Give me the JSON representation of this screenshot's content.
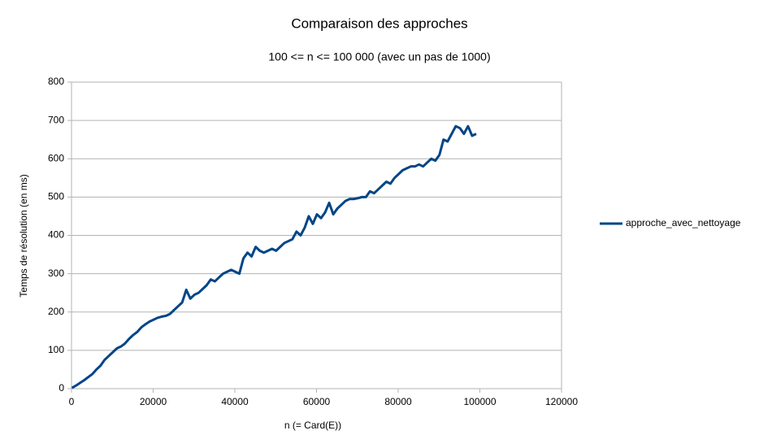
{
  "chart_data": {
    "type": "line",
    "title": "Comparaison des approches",
    "subtitle": "100 <= n <= 100 000 (avec un pas de 1000)",
    "x_label": "n (= Card(E))",
    "y_label": "Temps de résolution (en ms)",
    "x": [
      100,
      1100,
      2100,
      3100,
      4100,
      5100,
      6100,
      7100,
      8100,
      9100,
      10100,
      11100,
      12100,
      13100,
      14100,
      15100,
      16100,
      17100,
      18100,
      19100,
      20100,
      21100,
      22100,
      23100,
      24100,
      25100,
      26100,
      27100,
      28100,
      29100,
      30100,
      31100,
      32100,
      33100,
      34100,
      35100,
      36100,
      37100,
      38100,
      39100,
      40100,
      41100,
      42100,
      43100,
      44100,
      45100,
      46100,
      47100,
      48100,
      49100,
      50100,
      51100,
      52100,
      53100,
      54100,
      55100,
      56100,
      57100,
      58100,
      59100,
      60100,
      61100,
      62100,
      63100,
      64100,
      65100,
      66100,
      67100,
      68100,
      69100,
      70100,
      71100,
      72100,
      73100,
      74100,
      75100,
      76100,
      77100,
      78100,
      79100,
      80100,
      81100,
      82100,
      83100,
      84100,
      85100,
      86100,
      87100,
      88100,
      89100,
      90100,
      91100,
      92100,
      93100,
      94100,
      95100,
      96100,
      97100,
      98100,
      99100
    ],
    "series": [
      {
        "name": "approche_avec_nettoyage",
        "color": "#004586",
        "values": [
          2,
          8,
          15,
          22,
          30,
          38,
          50,
          60,
          75,
          85,
          95,
          105,
          110,
          118,
          130,
          140,
          148,
          160,
          168,
          175,
          180,
          185,
          188,
          190,
          195,
          205,
          215,
          225,
          258,
          235,
          245,
          250,
          260,
          270,
          285,
          280,
          290,
          300,
          305,
          310,
          305,
          300,
          340,
          355,
          345,
          370,
          360,
          355,
          360,
          365,
          360,
          370,
          380,
          385,
          390,
          410,
          400,
          420,
          450,
          430,
          455,
          445,
          460,
          485,
          455,
          470,
          480,
          490,
          495,
          495,
          497,
          500,
          500,
          515,
          510,
          520,
          530,
          540,
          535,
          550,
          560,
          570,
          575,
          580,
          580,
          585,
          580,
          590,
          600,
          595,
          610,
          650,
          645,
          665,
          685,
          680,
          665,
          685,
          660,
          665
        ]
      }
    ],
    "xlim": [
      0,
      120000
    ],
    "xticks": [
      0,
      20000,
      40000,
      60000,
      80000,
      100000,
      120000
    ],
    "ylim": [
      0,
      800
    ],
    "yticks": [
      0,
      100,
      200,
      300,
      400,
      500,
      600,
      700,
      800
    ],
    "grid": true,
    "legend": "right"
  }
}
